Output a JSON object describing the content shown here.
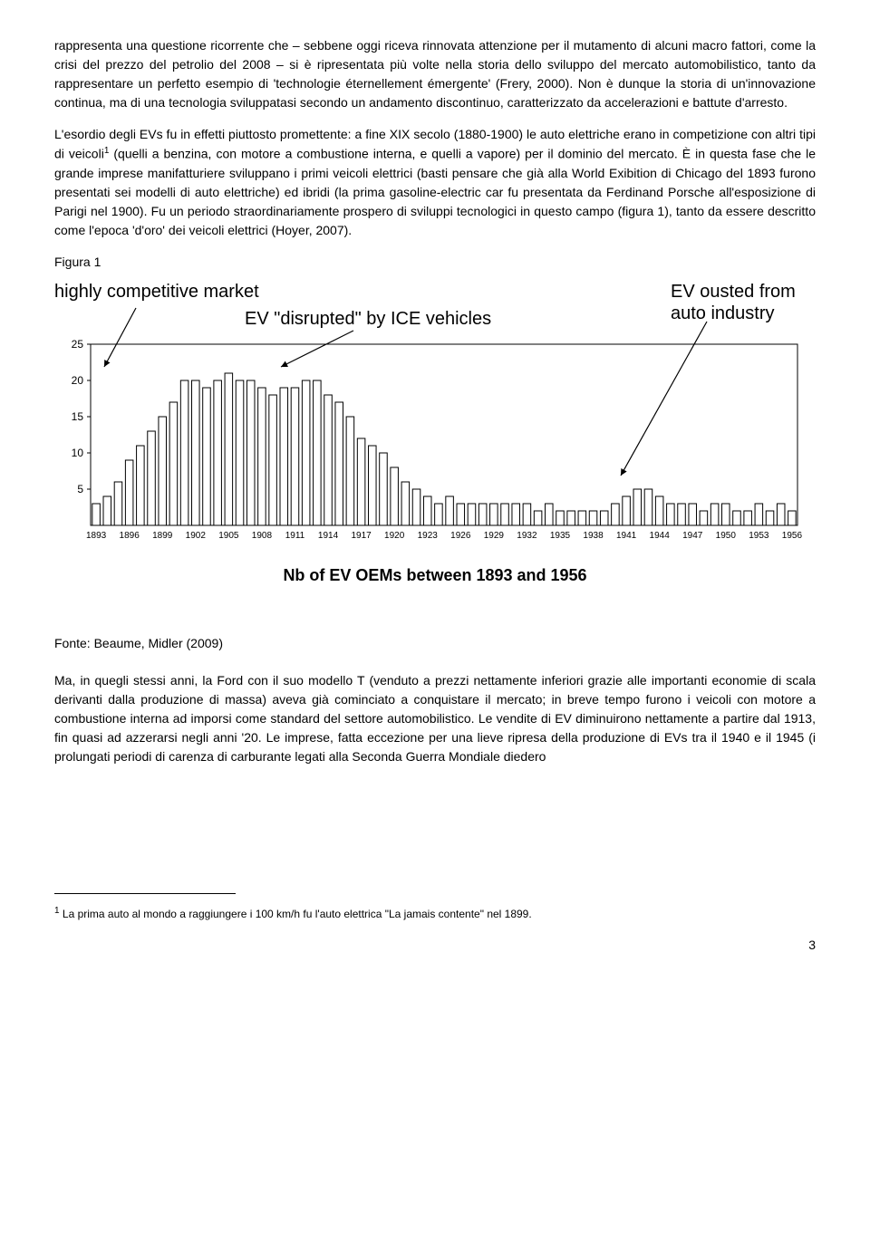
{
  "para1": "rappresenta una questione ricorrente che – sebbene oggi riceva rinnovata attenzione per il mutamento di alcuni macro fattori, come la crisi del prezzo del petrolio del 2008 – si è ripresentata più volte nella storia dello sviluppo del mercato automobilistico, tanto da rappresentare un perfetto esempio di 'technologie éternellement émergente' (Frery, 2000). Non è dunque la storia di un'innovazione continua, ma di una tecnologia sviluppatasi secondo un andamento discontinuo, caratterizzato da accelerazioni e battute d'arresto.",
  "para2a": "L'esordio degli EVs fu in effetti piuttosto promettente: a fine XIX secolo (1880-1900) le auto elettriche erano in competizione con altri tipi di veicoli",
  "para2b": " (quelli a benzina, con motore a combustione interna, e quelli a vapore) per il dominio del mercato. È in questa fase che le grande imprese manifatturiere sviluppano i primi veicoli elettrici (basti pensare che già alla World Exibition di Chicago del 1893 furono presentati sei modelli di auto elettriche) ed ibridi (la prima gasoline-electric car fu presentata da Ferdinand Porsche all'esposizione di Parigi nel 1900). Fu un periodo straordinariamente prospero di sviluppi tecnologici in questo campo (figura 1), tanto da essere descritto come l'epoca 'd'oro' dei veicoli elettrici (Hoyer, 2007).",
  "fig_label": "Figura 1",
  "annot1": "highly competitive market",
  "annot2": "EV \"disrupted\" by ICE vehicles",
  "annot3": "EV ousted from\nauto industry",
  "chart": {
    "type": "bar",
    "years": [
      1893,
      1894,
      1895,
      1896,
      1897,
      1898,
      1899,
      1900,
      1901,
      1902,
      1903,
      1904,
      1905,
      1906,
      1907,
      1908,
      1909,
      1910,
      1911,
      1912,
      1913,
      1914,
      1915,
      1916,
      1917,
      1918,
      1919,
      1920,
      1921,
      1922,
      1923,
      1924,
      1925,
      1926,
      1927,
      1928,
      1929,
      1930,
      1931,
      1932,
      1933,
      1934,
      1935,
      1936,
      1937,
      1938,
      1939,
      1940,
      1941,
      1942,
      1943,
      1944,
      1945,
      1946,
      1947,
      1948,
      1949,
      1950,
      1951,
      1952,
      1953,
      1954,
      1955,
      1956
    ],
    "values": [
      3,
      4,
      6,
      9,
      11,
      13,
      15,
      17,
      20,
      20,
      19,
      20,
      21,
      20,
      20,
      19,
      18,
      19,
      19,
      20,
      20,
      18,
      17,
      15,
      12,
      11,
      10,
      8,
      6,
      5,
      4,
      3,
      4,
      3,
      3,
      3,
      3,
      3,
      3,
      3,
      2,
      3,
      2,
      2,
      2,
      2,
      2,
      3,
      4,
      5,
      5,
      4,
      3,
      3,
      3,
      2,
      3,
      3,
      2,
      2,
      3,
      2,
      3,
      2
    ],
    "xtick_labels": [
      "1893",
      "1896",
      "1899",
      "1902",
      "1905",
      "1908",
      "1911",
      "1914",
      "1917",
      "1920",
      "1923",
      "1926",
      "1929",
      "1932",
      "1935",
      "1938",
      "1941",
      "1944",
      "1947",
      "1950",
      "1953",
      "1956"
    ],
    "xtick_every": 3,
    "ylim": [
      0,
      25
    ],
    "yticks": [
      5,
      10,
      15,
      20,
      25
    ],
    "bar_stroke": "#000000",
    "bar_fill": "none",
    "axis_color": "#000000",
    "bg": "#ffffff",
    "caption": "Nb of EV OEMs between 1893 and 1956",
    "arrows": [
      {
        "from": [
          90,
          30
        ],
        "to": [
          55,
          95
        ]
      },
      {
        "from": [
          330,
          55
        ],
        "to": [
          250,
          95
        ]
      },
      {
        "from": [
          720,
          45
        ],
        "to": [
          625,
          215
        ]
      }
    ]
  },
  "source": "Fonte: Beaume, Midler (2009)",
  "para3": "Ma, in quegli stessi anni, la Ford con il suo modello T (venduto a prezzi nettamente inferiori grazie alle importanti economie di scala derivanti dalla produzione di massa) aveva già cominciato a conquistare il mercato; in breve tempo furono i veicoli con motore a combustione interna ad imporsi come standard del settore automobilistico. Le vendite di EV diminuirono nettamente a partire dal 1913, fin quasi ad azzerarsi negli anni '20. Le imprese, fatta eccezione per una lieve ripresa della produzione di EVs tra il 1940 e il 1945 (i prolungati periodi di carenza di carburante legati alla Seconda Guerra Mondiale diedero",
  "footnote_marker": "1",
  "footnote": " La prima auto al mondo a raggiungere i 100 km/h fu l'auto elettrica \"La jamais contente\" nel 1899.",
  "pagenum": "3"
}
